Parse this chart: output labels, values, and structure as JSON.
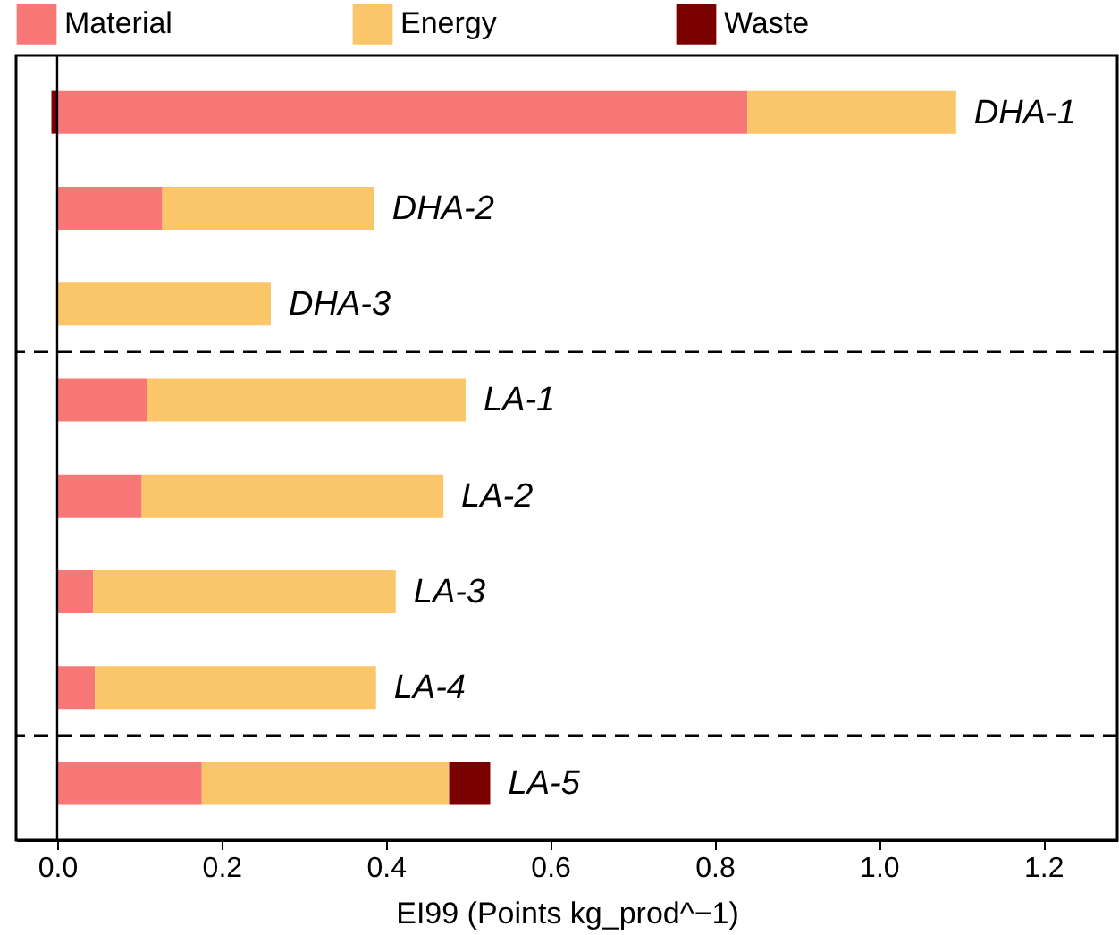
{
  "chart_data": {
    "type": "bar",
    "orientation": "horizontal",
    "stacked": true,
    "xlabel": "EI99 (Points kg_prod^−1)",
    "categories": [
      "DHA-1",
      "DHA-2",
      "DHA-3",
      "LA-1",
      "LA-2",
      "LA-3",
      "LA-4",
      "LA-5"
    ],
    "series": [
      {
        "name": "Material",
        "color": "#f87878",
        "values": [
          0.84,
          0.128,
          0,
          0.109,
          0.103,
          0.044,
          0.046,
          0.176
        ]
      },
      {
        "name": "Energy",
        "color": "#fbc56a",
        "values": [
          0.254,
          0.258,
          0.26,
          0.388,
          0.367,
          0.368,
          0.342,
          0.301
        ]
      },
      {
        "name": "Waste",
        "color": "#7b0000",
        "values": [
          -0.007,
          0,
          0,
          0,
          0,
          0,
          0,
          0.05
        ]
      }
    ],
    "xlim": [
      -0.05,
      1.29
    ],
    "xticks": [
      {
        "value": 0,
        "label": "0.0"
      },
      0.2,
      0.4,
      0.6,
      0.8,
      {
        "value": 1,
        "label": "1.0"
      },
      1.2
    ],
    "ref_lines": [
      {
        "axis": "x",
        "value": 0,
        "line_style": "solid",
        "color": "#000000"
      }
    ],
    "legend": "top",
    "grid": false,
    "tick_labels": "x"
  }
}
